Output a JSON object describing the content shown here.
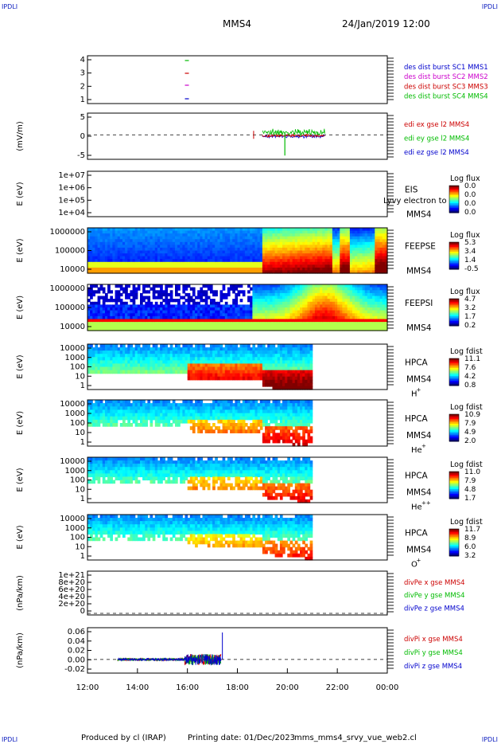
{
  "header": {
    "corner_label": "IPDLI",
    "spacecraft": "MMS4",
    "datetime": "24/Jan/2019 12:00"
  },
  "footer": {
    "produced_by": "Produced by cl (IRAP)",
    "printing_date": "Printing date: 01/Dec/2023",
    "script": "mms_mms4_srvy_vue_web2.cl"
  },
  "x_axis": {
    "ticks": [
      "12:00",
      "14:00",
      "16:00",
      "18:00",
      "20:00",
      "22:00",
      "00:00"
    ],
    "range_hours": [
      12,
      24
    ]
  },
  "colors": {
    "blue": "#0000cc",
    "red": "#cc0000",
    "magenta": "#cc00cc",
    "green": "#00bb00"
  },
  "panels": [
    {
      "id": "burst",
      "ylabel": "",
      "yticks": [
        "4",
        "3",
        "2",
        "1"
      ],
      "legend": [
        {
          "text": "des dist burst SC1 MMS1",
          "color": "#0000cc"
        },
        {
          "text": "des dist burst SC2 MMS2",
          "color": "#cc00cc"
        },
        {
          "text": "des dist burst SC3 MMS3",
          "color": "#cc0000"
        },
        {
          "text": "des dist burst SC4 MMS4",
          "color": "#00bb00"
        }
      ]
    },
    {
      "id": "efield",
      "ylabel": "(mV/m)",
      "yticks": [
        "5",
        "0",
        "-5"
      ],
      "legend": [
        {
          "text": "edi ex gse l2 MMS4",
          "color": "#cc0000"
        },
        {
          "text": "edi ey gse l2 MMS4",
          "color": "#00bb00"
        },
        {
          "text": "edi ez gse l2 MMS4",
          "color": "#0000cc"
        }
      ]
    },
    {
      "id": "eis",
      "ylabel": "E (eV)",
      "yticks": [
        "1e+07",
        "1e+06",
        "1e+05",
        "1e+04"
      ],
      "instrument": "EIS",
      "instrument_sub": "MMS4",
      "extra_label": "Lyvy electron to",
      "cbar": {
        "title": "Log flux",
        "values": [
          "0.0",
          "0.0",
          "0.0",
          "0.0"
        ]
      }
    },
    {
      "id": "feepse",
      "ylabel": "E (eV)",
      "yticks": [
        "1000000",
        "100000",
        "10000"
      ],
      "instrument": "FEEPSE",
      "instrument_sub": "MMS4",
      "cbar": {
        "title": "Log flux",
        "values": [
          "5.3",
          "3.4",
          "1.4",
          "-0.5"
        ]
      }
    },
    {
      "id": "feepsi",
      "ylabel": "E (eV)",
      "yticks": [
        "1000000",
        "100000",
        "10000"
      ],
      "instrument": "FEEPSI",
      "instrument_sub": "MMS4",
      "cbar": {
        "title": "Log flux",
        "values": [
          "4.7",
          "3.2",
          "1.7",
          "0.2"
        ]
      }
    },
    {
      "id": "hpca_h",
      "ylabel": "E (eV)",
      "yticks": [
        "10000",
        "1000",
        "100",
        "10",
        "1"
      ],
      "instrument": "HPCA",
      "instrument_sub": "MMS4",
      "species": "H",
      "species_sup": "+",
      "cbar": {
        "title": "Log fdist",
        "values": [
          "11.1",
          "7.6",
          "4.2",
          "0.8"
        ]
      }
    },
    {
      "id": "hpca_he",
      "ylabel": "E (eV)",
      "yticks": [
        "10000",
        "1000",
        "100",
        "10",
        "1"
      ],
      "instrument": "HPCA",
      "instrument_sub": "MMS4",
      "species": "He",
      "species_sup": "+",
      "cbar": {
        "title": "Log fdist",
        "values": [
          "10.9",
          "7.9",
          "4.9",
          "2.0"
        ]
      }
    },
    {
      "id": "hpca_he2",
      "ylabel": "E (eV)",
      "yticks": [
        "10000",
        "1000",
        "100",
        "10",
        "1"
      ],
      "instrument": "HPCA",
      "instrument_sub": "MMS4",
      "species": "He",
      "species_sup": "++",
      "cbar": {
        "title": "Log fdist",
        "values": [
          "11.0",
          "7.9",
          "4.8",
          "1.7"
        ]
      }
    },
    {
      "id": "hpca_o",
      "ylabel": "E (eV)",
      "yticks": [
        "10000",
        "1000",
        "100",
        "10",
        "1"
      ],
      "instrument": "HPCA",
      "instrument_sub": "MMS4",
      "species": "O",
      "species_sup": "+",
      "cbar": {
        "title": "Log fdist",
        "values": [
          "11.7",
          "8.9",
          "6.0",
          "3.2"
        ]
      }
    },
    {
      "id": "divpe",
      "ylabel": "(nPa/km)",
      "yticks": [
        "1e+21",
        "8e+20",
        "6e+20",
        "4e+20",
        "2e+20",
        "0"
      ],
      "legend": [
        {
          "text": "divPe x gse MMS4",
          "color": "#cc0000"
        },
        {
          "text": "divPe y gse MMS4",
          "color": "#00bb00"
        },
        {
          "text": "divPe z gse MMS4",
          "color": "#0000cc"
        }
      ]
    },
    {
      "id": "divpi",
      "ylabel": "(nPa/km)",
      "yticks": [
        "0.06",
        "0.04",
        "0.02",
        "0.00",
        "-0.02"
      ],
      "legend": [
        {
          "text": "divPi x gse MMS4",
          "color": "#cc0000"
        },
        {
          "text": "divPi y gse MMS4",
          "color": "#00bb00"
        },
        {
          "text": "divPi z gse MMS4",
          "color": "#0000cc"
        }
      ]
    }
  ],
  "chart_data": [
    {
      "type": "line",
      "title": "des dist burst",
      "xlabel": "",
      "ylabel": "",
      "ylim": [
        0.5,
        4.5
      ],
      "series": [
        {
          "name": "des dist burst SC1 MMS1",
          "x": [
            15.9,
            16.1
          ],
          "values": [
            1,
            1
          ]
        },
        {
          "name": "des dist burst SC2 MMS2",
          "x": [
            15.9,
            16.1
          ],
          "values": [
            2,
            2
          ]
        },
        {
          "name": "des dist burst SC3 MMS3",
          "x": [
            15.9,
            16.1
          ],
          "values": [
            3,
            3
          ]
        },
        {
          "name": "des dist burst SC4 MMS4",
          "x": [
            15.9,
            16.1
          ],
          "values": [
            4,
            4
          ]
        }
      ]
    },
    {
      "type": "line",
      "title": "edi e gse l2",
      "xlabel": "",
      "ylabel": "(mV/m)",
      "ylim": [
        -8,
        8
      ],
      "x_range_hours": [
        18.6,
        21.5
      ]
    },
    {
      "type": "heatmap",
      "title": "EIS",
      "ylabel": "E (eV)",
      "yscale": "log",
      "ylim": [
        10000,
        10000000
      ],
      "cbar": [
        0.0,
        0.0,
        0.0,
        0.0
      ],
      "data": "empty"
    },
    {
      "type": "heatmap",
      "title": "FEEPSE",
      "ylabel": "E (eV)",
      "yscale": "log",
      "ylim": [
        10000,
        1000000
      ],
      "cbar": [
        5.3,
        3.4,
        1.4,
        -0.5
      ],
      "x_range_hours": [
        12,
        24
      ]
    },
    {
      "type": "heatmap",
      "title": "FEEPSI",
      "ylabel": "E (eV)",
      "yscale": "log",
      "ylim": [
        10000,
        1000000
      ],
      "cbar": [
        4.7,
        3.2,
        1.7,
        0.2
      ],
      "x_range_hours": [
        12,
        24
      ]
    },
    {
      "type": "heatmap",
      "title": "HPCA H+",
      "ylabel": "E (eV)",
      "yscale": "log",
      "ylim": [
        1,
        10000
      ],
      "cbar": [
        11.1,
        7.6,
        4.2,
        0.8
      ],
      "x_range_hours": [
        12,
        21
      ]
    },
    {
      "type": "heatmap",
      "title": "HPCA He+",
      "ylabel": "E (eV)",
      "yscale": "log",
      "ylim": [
        1,
        10000
      ],
      "cbar": [
        10.9,
        7.9,
        4.9,
        2.0
      ],
      "x_range_hours": [
        12,
        21
      ]
    },
    {
      "type": "heatmap",
      "title": "HPCA He++",
      "ylabel": "E (eV)",
      "yscale": "log",
      "ylim": [
        1,
        10000
      ],
      "cbar": [
        11.0,
        7.9,
        4.8,
        1.7
      ],
      "x_range_hours": [
        12,
        21
      ]
    },
    {
      "type": "heatmap",
      "title": "HPCA O+",
      "ylabel": "E (eV)",
      "yscale": "log",
      "ylim": [
        1,
        10000
      ],
      "cbar": [
        11.7,
        8.9,
        6.0,
        3.2
      ],
      "x_range_hours": [
        12,
        21
      ]
    },
    {
      "type": "line",
      "title": "divPe gse",
      "ylabel": "(nPa/km)",
      "ylim": [
        0,
        1e+21
      ],
      "data": "empty"
    },
    {
      "type": "line",
      "title": "divPi gse",
      "ylabel": "(nPa/km)",
      "ylim": [
        -0.03,
        0.07
      ],
      "x_range_hours": [
        13.3,
        17.4
      ]
    }
  ]
}
